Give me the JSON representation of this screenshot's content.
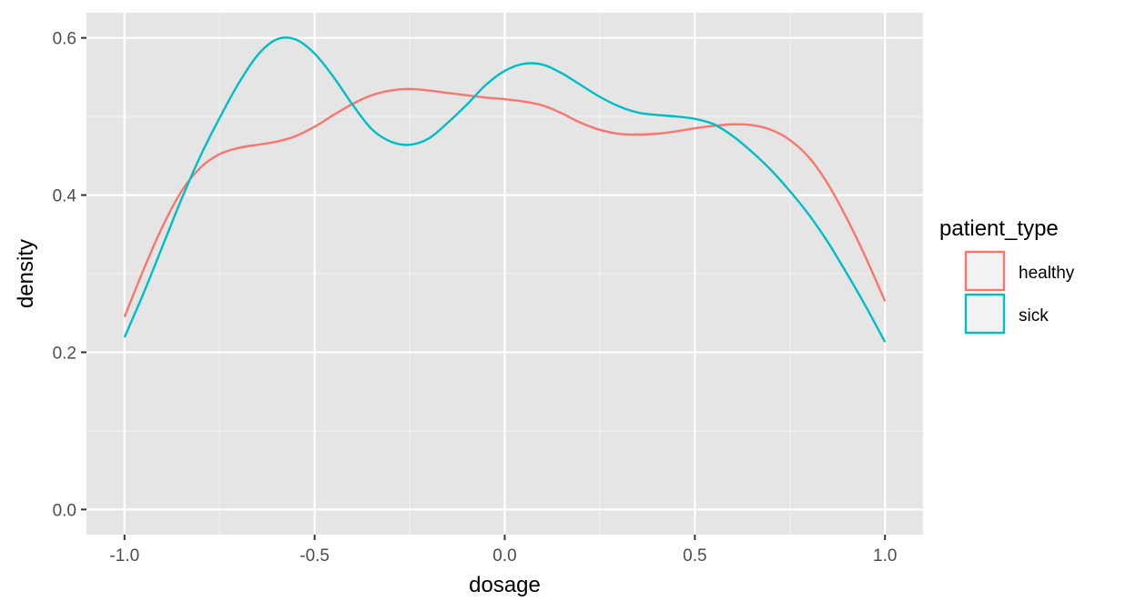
{
  "chart_data": {
    "type": "line",
    "subtype": "density",
    "title": "",
    "xlabel": "dosage",
    "ylabel": "density",
    "xlim": [
      -1.1,
      1.1
    ],
    "ylim": [
      -0.032,
      0.632
    ],
    "xticks": [
      -1.0,
      -0.5,
      0.0,
      0.5,
      1.0
    ],
    "xtick_labels": [
      "-1.0",
      "-0.5",
      "0.0",
      "0.5",
      "1.0"
    ],
    "yticks": [
      0.0,
      0.2,
      0.4,
      0.6
    ],
    "ytick_labels": [
      "0.0",
      "0.2",
      "0.4",
      "0.6"
    ],
    "grid": true,
    "panel_background": "#e5e5e5",
    "legend": {
      "title": "patient_type",
      "position": "right"
    },
    "series": [
      {
        "name": "healthy",
        "color": "#f8766d",
        "x": [
          -1.0,
          -0.95,
          -0.9,
          -0.85,
          -0.8,
          -0.75,
          -0.7,
          -0.65,
          -0.6,
          -0.55,
          -0.5,
          -0.45,
          -0.4,
          -0.35,
          -0.3,
          -0.25,
          -0.2,
          -0.15,
          -0.1,
          -0.05,
          0.0,
          0.05,
          0.1,
          0.15,
          0.2,
          0.25,
          0.3,
          0.35,
          0.4,
          0.45,
          0.5,
          0.55,
          0.6,
          0.65,
          0.7,
          0.75,
          0.8,
          0.85,
          0.9,
          0.95,
          1.0
        ],
        "y": [
          0.245,
          0.305,
          0.36,
          0.405,
          0.435,
          0.452,
          0.46,
          0.464,
          0.468,
          0.475,
          0.487,
          0.502,
          0.516,
          0.527,
          0.533,
          0.535,
          0.533,
          0.53,
          0.527,
          0.524,
          0.522,
          0.519,
          0.514,
          0.504,
          0.492,
          0.483,
          0.478,
          0.477,
          0.478,
          0.481,
          0.485,
          0.488,
          0.49,
          0.489,
          0.483,
          0.47,
          0.448,
          0.414,
          0.37,
          0.32,
          0.265
        ]
      },
      {
        "name": "sick",
        "color": "#00bfc4",
        "x": [
          -1.0,
          -0.95,
          -0.9,
          -0.85,
          -0.8,
          -0.75,
          -0.7,
          -0.65,
          -0.6,
          -0.55,
          -0.5,
          -0.45,
          -0.4,
          -0.35,
          -0.3,
          -0.25,
          -0.2,
          -0.15,
          -0.1,
          -0.05,
          0.0,
          0.05,
          0.1,
          0.15,
          0.2,
          0.25,
          0.3,
          0.35,
          0.4,
          0.45,
          0.5,
          0.55,
          0.6,
          0.65,
          0.7,
          0.75,
          0.8,
          0.85,
          0.9,
          0.95,
          1.0
        ],
        "y": [
          0.219,
          0.275,
          0.335,
          0.395,
          0.45,
          0.498,
          0.542,
          0.578,
          0.598,
          0.598,
          0.58,
          0.55,
          0.515,
          0.484,
          0.468,
          0.464,
          0.472,
          0.492,
          0.515,
          0.54,
          0.558,
          0.567,
          0.566,
          0.555,
          0.54,
          0.525,
          0.513,
          0.505,
          0.502,
          0.5,
          0.497,
          0.49,
          0.475,
          0.455,
          0.432,
          0.405,
          0.375,
          0.34,
          0.3,
          0.258,
          0.213
        ]
      }
    ]
  }
}
